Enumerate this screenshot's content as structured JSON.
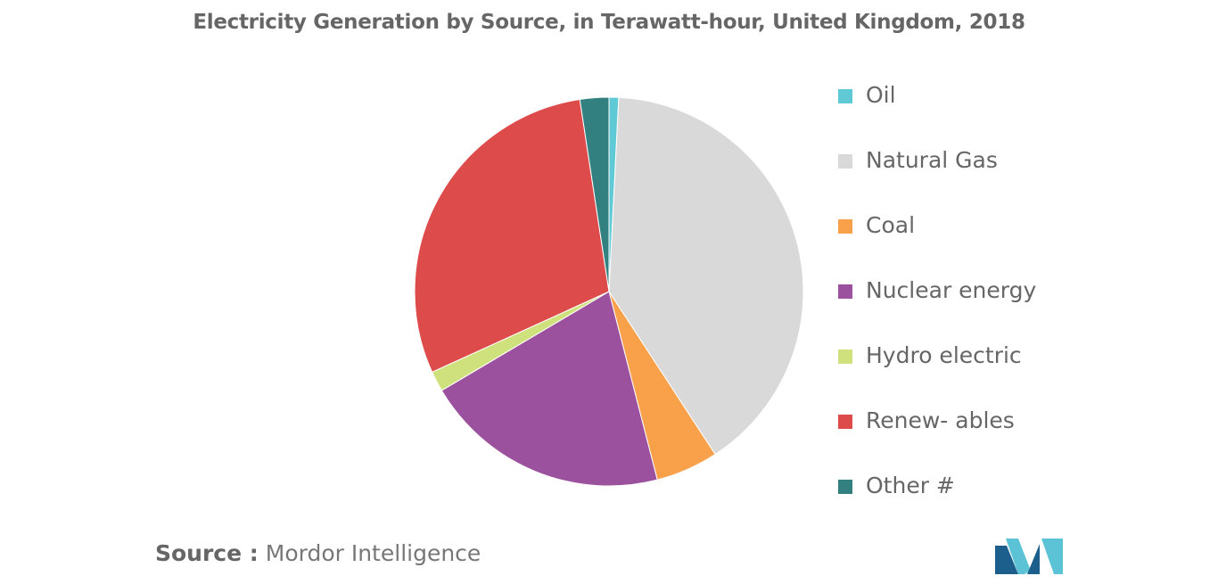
{
  "chart_data": {
    "type": "pie",
    "title": "Electricity Generation by Source, in Terawatt-hour, United Kingdom, 2018",
    "series": [
      {
        "name": "Oil",
        "value": 0.8,
        "color": "#5fc9d6"
      },
      {
        "name": "Natural Gas",
        "value": 40.0,
        "color": "#d9d9d9"
      },
      {
        "name": "Coal",
        "value": 5.2,
        "color": "#f9a04a"
      },
      {
        "name": "Nuclear energy",
        "value": 20.5,
        "color": "#9b519e"
      },
      {
        "name": "Hydro electric",
        "value": 1.7,
        "color": "#cfe17c"
      },
      {
        "name": "Renew- ables",
        "value": 29.4,
        "color": "#dd4b4b"
      },
      {
        "name": "Other #",
        "value": 2.4,
        "color": "#338080"
      }
    ],
    "legend_position": "right"
  },
  "source": {
    "label": "Source :",
    "text": "Mordor Intelligence"
  },
  "logo": {
    "name": "mordor-intelligence-logo",
    "color_dark": "#1c5f8c",
    "color_light": "#5bc3d5"
  }
}
